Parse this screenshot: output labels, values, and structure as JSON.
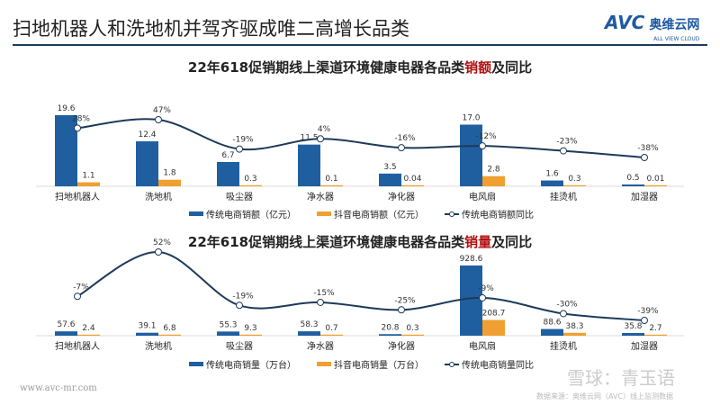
{
  "header": {
    "title": "扫地机器人和洗地机并驾齐驱成唯二高增长品类",
    "logo_text": "AVC",
    "logo_cn": "奥维云网",
    "logo_en": "ALL VIEW CLOUD"
  },
  "colors": {
    "blue": "#1f5fa0",
    "orange": "#f0a030",
    "line": "#1d3a5a",
    "title_red": "#b01010"
  },
  "chart_data": [
    {
      "type": "bar",
      "title_prefix": "22年618促销期线上渠道环境健康电器各品类",
      "title_highlight": "销额",
      "title_suffix": "及同比",
      "categories": [
        "扫地机器人",
        "洗地机",
        "吸尘器",
        "净水器",
        "净化器",
        "电风扇",
        "挂烫机",
        "加湿器"
      ],
      "series": [
        {
          "name": "传统电商销额（亿元）",
          "type": "bar",
          "values": [
            19.6,
            12.4,
            6.7,
            11.5,
            3.5,
            17.0,
            1.6,
            0.5
          ],
          "labels": [
            "19.6",
            "12.4",
            "6.7",
            "11.5",
            "3.5",
            "17.0",
            "1.6",
            "0.5"
          ]
        },
        {
          "name": "抖音电商销额（亿元）",
          "type": "bar",
          "values": [
            1.1,
            1.8,
            0.3,
            0.1,
            0.04,
            2.8,
            0.3,
            0.01
          ],
          "labels": [
            "1.1",
            "1.8",
            "0.3",
            "0.1",
            "0.04",
            "2.8",
            "0.3",
            "0.01"
          ]
        },
        {
          "name": "传统电商销额同比",
          "type": "line",
          "axis": "secondary",
          "values": [
            28,
            47,
            -19,
            4,
            -16,
            -12,
            -23,
            -38
          ],
          "labels": [
            "28%",
            "47%",
            "-19%",
            "4%",
            "-16%",
            "-12%",
            "-23%",
            "-38%"
          ]
        }
      ],
      "secondary_ylim": [
        -40,
        50
      ]
    },
    {
      "type": "bar",
      "title_prefix": "22年618促销期线上渠道环境健康电器各品类",
      "title_highlight": "销量",
      "title_suffix": "及同比",
      "categories": [
        "扫地机器人",
        "洗地机",
        "吸尘器",
        "净水器",
        "净化器",
        "电风扇",
        "挂烫机",
        "加湿器"
      ],
      "series": [
        {
          "name": "传统电商销量（万台）",
          "type": "bar",
          "values": [
            57.6,
            39.1,
            55.3,
            58.3,
            20.8,
            928.6,
            88.6,
            35.8
          ],
          "labels": [
            "57.6",
            "39.1",
            "55.3",
            "58.3",
            "20.8",
            "928.6",
            "88.6",
            "35.8"
          ]
        },
        {
          "name": "抖音电商销量（万台）",
          "type": "bar",
          "values": [
            2.4,
            6.8,
            9.3,
            0.7,
            0.3,
            208.7,
            38.3,
            2.7
          ],
          "labels": [
            "2.4",
            "6.8",
            "9.3",
            "0.7",
            "0.3",
            "208.7",
            "38.3",
            "2.7"
          ]
        },
        {
          "name": "传统电商销量同比",
          "type": "line",
          "axis": "secondary",
          "values": [
            -7,
            52,
            -19,
            -15,
            -25,
            -9,
            -30,
            -39
          ],
          "labels": [
            "-7%",
            "52%",
            "-19%",
            "-15%",
            "-25%",
            "-9%",
            "-30%",
            "-39%"
          ]
        }
      ],
      "secondary_ylim": [
        -40,
        52
      ]
    }
  ],
  "footer": {
    "url": "www.avc-mr.com",
    "source": "数据来源：奥维云网（AVC）线上监测数据",
    "watermark": "雪球：青玉语"
  }
}
